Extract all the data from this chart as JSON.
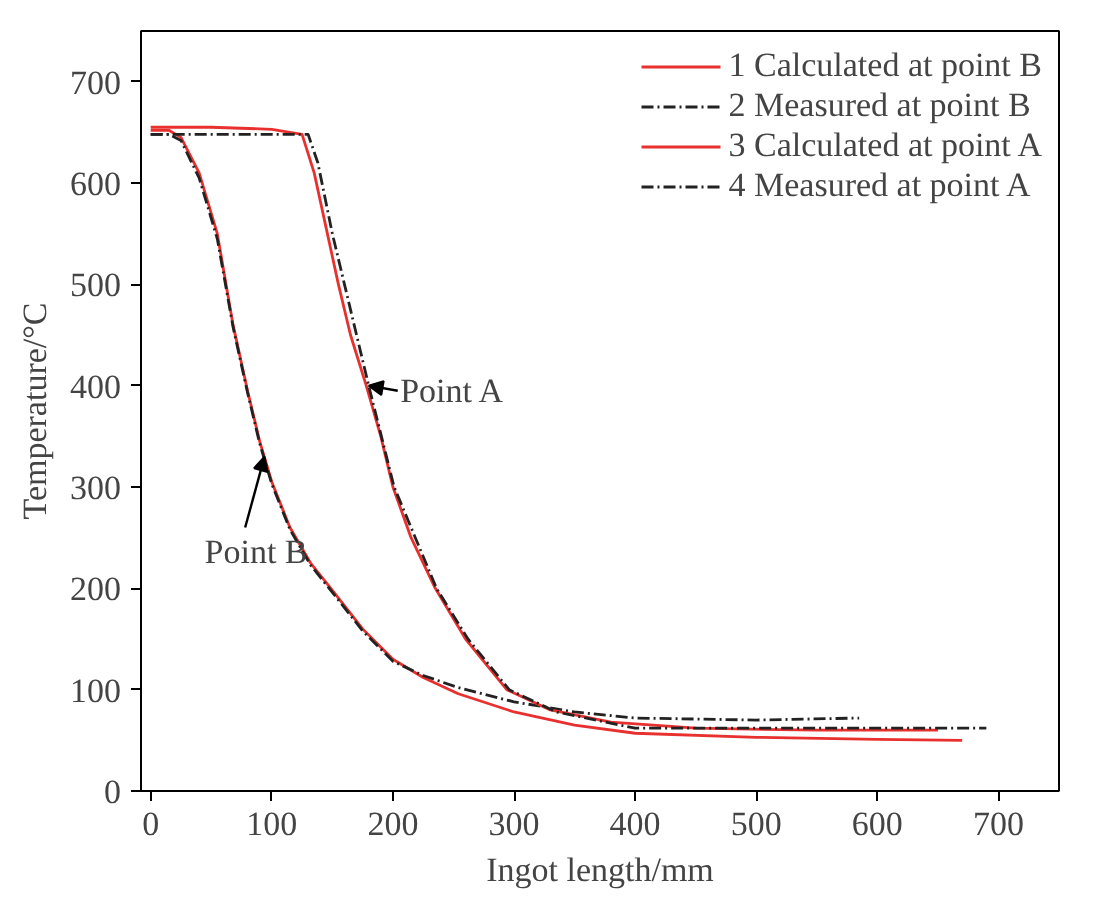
{
  "chart_data": {
    "type": "line",
    "xlabel": "Ingot length/mm",
    "ylabel": "Temperature/°C",
    "xlim": [
      -8,
      750
    ],
    "ylim": [
      0,
      750
    ],
    "xticks": [
      0,
      100,
      200,
      300,
      400,
      500,
      600,
      700
    ],
    "yticks": [
      0,
      100,
      200,
      300,
      400,
      500,
      600,
      700
    ],
    "grid": false,
    "legend": "top right",
    "marker": "none",
    "series": [
      {
        "name": "1 Calculated at point B",
        "color": "#e8302f",
        "line_style": "solid",
        "x": [
          0,
          15,
          25,
          40,
          55,
          68,
          80,
          90,
          100,
          115,
          132,
          152,
          175,
          200,
          225,
          254,
          300,
          350,
          400,
          500,
          600,
          670
        ],
        "values": [
          652,
          652,
          645,
          610,
          550,
          460,
          395,
          345,
          305,
          260,
          225,
          195,
          160,
          130,
          112,
          96,
          78,
          65,
          57,
          53,
          51,
          50
        ]
      },
      {
        "name": "2 Measured at point B",
        "color": "#222222",
        "line_style": "dashdot",
        "x": [
          0,
          15,
          25,
          40,
          55,
          68,
          80,
          90,
          100,
          115,
          132,
          152,
          175,
          200,
          225,
          254,
          300,
          350,
          400,
          500,
          585
        ],
        "values": [
          648,
          648,
          642,
          605,
          545,
          458,
          393,
          343,
          303,
          258,
          223,
          193,
          158,
          128,
          114,
          102,
          88,
          78,
          72,
          70,
          72
        ]
      },
      {
        "name": "3 Calculated at point A",
        "color": "#e8302f",
        "line_style": "solid",
        "x": [
          0,
          50,
          100,
          125,
          135,
          145,
          155,
          165,
          178,
          190,
          200,
          215,
          235,
          260,
          294,
          330,
          380,
          450,
          550,
          650
        ],
        "values": [
          655,
          655,
          653,
          648,
          610,
          555,
          500,
          450,
          400,
          350,
          300,
          250,
          200,
          150,
          100,
          80,
          68,
          62,
          60,
          60
        ]
      },
      {
        "name": "4 Measured at point A",
        "color": "#222222",
        "line_style": "dashdot",
        "x": [
          0,
          130,
          138,
          150,
          160,
          180,
          201,
          236,
          262,
          296,
          335,
          400,
          500,
          600,
          690
        ],
        "values": [
          648,
          648,
          620,
          550,
          500,
          400,
          300,
          200,
          150,
          100,
          78,
          62,
          62,
          62,
          62
        ]
      }
    ],
    "annotations": [
      {
        "text": "Point A",
        "x": 178,
        "y": 400
      },
      {
        "text": "Point B",
        "x": 92,
        "y": 330
      }
    ]
  }
}
